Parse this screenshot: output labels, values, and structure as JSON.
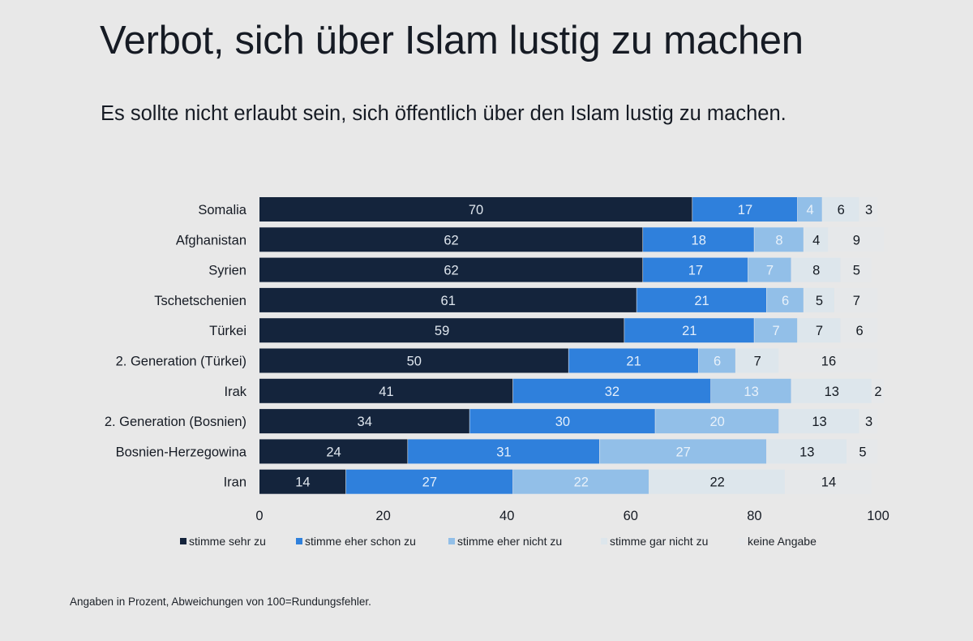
{
  "title": "Verbot, sich über Islam lustig zu machen",
  "subtitle": "Es sollte nicht erlaubt sein, sich öffentlich über den Islam lustig zu machen.",
  "footnote": "Angaben in Prozent, Abweichungen von 100=Rundungsfehler.",
  "chart_data": {
    "type": "bar",
    "orientation": "horizontal",
    "stacked": true,
    "title": "Verbot, sich über Islam lustig zu machen",
    "subtitle": "Es sollte nicht erlaubt sein, sich öffentlich über den Islam lustig zu machen.",
    "xlabel": "",
    "ylabel": "",
    "xlim": [
      0,
      100
    ],
    "xticks": [
      0,
      20,
      40,
      60,
      80,
      100
    ],
    "grid": false,
    "legend_position": "bottom",
    "categories": [
      "Somalia",
      "Afghanistan",
      "Syrien",
      "Tschetschenien",
      "Türkei",
      "2. Generation (Türkei)",
      "Irak",
      "2. Generation (Bosnien)",
      "Bosnien-Herzegowina",
      "Iran"
    ],
    "series": [
      {
        "name": "stimme sehr zu",
        "color": "#14243c",
        "label_color": "#dfe6ee",
        "values": [
          70,
          62,
          62,
          61,
          59,
          50,
          41,
          34,
          24,
          14
        ]
      },
      {
        "name": "stimme eher schon zu",
        "color": "#2f80dc",
        "label_color": "#e3eefb",
        "values": [
          17,
          18,
          17,
          21,
          21,
          21,
          32,
          30,
          31,
          27
        ]
      },
      {
        "name": "stimme eher nicht zu",
        "color": "#92bfe8",
        "label_color": "#e8f1fa",
        "values": [
          4,
          8,
          7,
          6,
          7,
          6,
          13,
          20,
          27,
          22
        ]
      },
      {
        "name": "stimme gar nicht zu",
        "color": "#dde6ec",
        "label_color": "#141a22",
        "values": [
          6,
          4,
          8,
          5,
          7,
          7,
          13,
          13,
          13,
          22
        ]
      },
      {
        "name": "keine Angabe",
        "color": "#e6e8ea",
        "label_color": "#141a22",
        "values": [
          3,
          9,
          5,
          7,
          6,
          16,
          2,
          3,
          5,
          14
        ]
      }
    ],
    "footnote": "Angaben in Prozent, Abweichungen von 100=Rundungsfehler."
  }
}
